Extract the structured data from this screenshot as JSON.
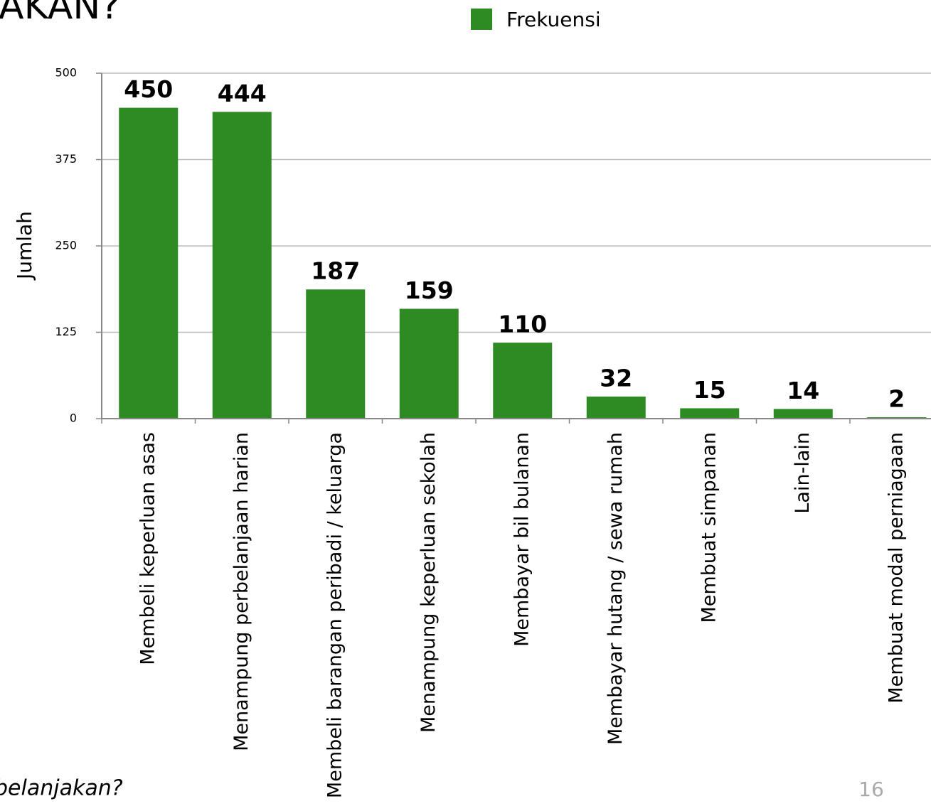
{
  "title": "AKAN?",
  "caption": "belanjakan?",
  "page_number": "16",
  "chart_data": {
    "type": "bar",
    "y_label": "Jumlah",
    "categories": [
      "Membeli keperluan asas",
      "Menampung perbelanjaan harian",
      "Membeli barangan peribadi / keluarga",
      "Menampung keperluan sekolah",
      "Membayar bil bulanan",
      "Membayar hutang / sewa rumah",
      "Membuat simpanan",
      "Lain-lain",
      "Membuat modal perniagaan"
    ],
    "series": [
      {
        "name": "Frekuensi",
        "color": "#2e8b23",
        "values": [
          450,
          444,
          187,
          159,
          110,
          32,
          15,
          14,
          2
        ]
      }
    ],
    "ylim": [
      0,
      500
    ],
    "yticks": [
      0,
      125,
      250,
      375,
      500
    ],
    "grid": true,
    "legend": "top"
  }
}
